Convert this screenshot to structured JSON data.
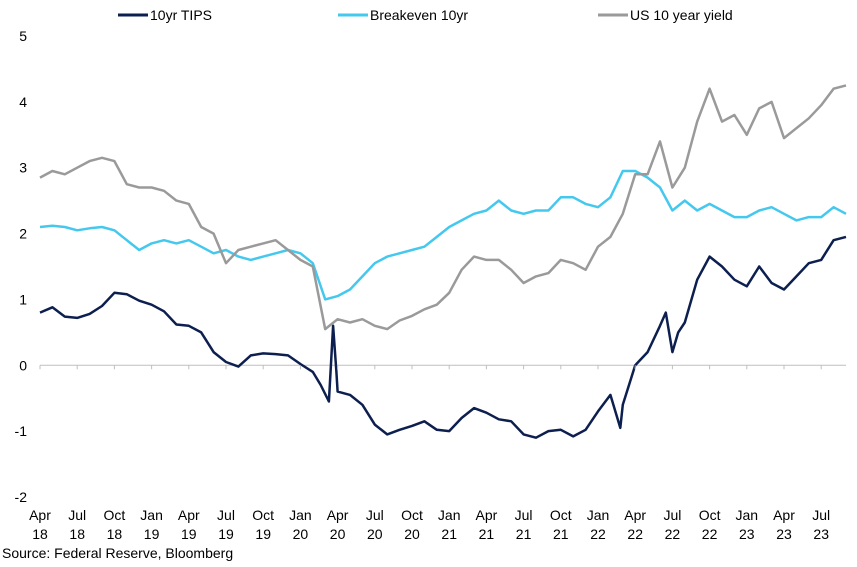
{
  "chart_data": {
    "type": "line",
    "title": "",
    "xlabel": "",
    "ylabel": "",
    "ylim": [
      -2,
      5
    ],
    "yticks": [
      -2,
      -1,
      0,
      1,
      2,
      3,
      4,
      5
    ],
    "xlim": [
      "2018-04",
      "2023-09"
    ],
    "xticks": [
      {
        "date": "2018-04",
        "line1": "Apr",
        "line2": "18"
      },
      {
        "date": "2018-07",
        "line1": "Jul",
        "line2": "18"
      },
      {
        "date": "2018-10",
        "line1": "Oct",
        "line2": "18"
      },
      {
        "date": "2019-01",
        "line1": "Jan",
        "line2": "19"
      },
      {
        "date": "2019-04",
        "line1": "Apr",
        "line2": "19"
      },
      {
        "date": "2019-07",
        "line1": "Jul",
        "line2": "19"
      },
      {
        "date": "2019-10",
        "line1": "Oct",
        "line2": "19"
      },
      {
        "date": "2020-01",
        "line1": "Jan",
        "line2": "20"
      },
      {
        "date": "2020-04",
        "line1": "Apr",
        "line2": "20"
      },
      {
        "date": "2020-07",
        "line1": "Jul",
        "line2": "20"
      },
      {
        "date": "2020-10",
        "line1": "Oct",
        "line2": "20"
      },
      {
        "date": "2021-01",
        "line1": "Jan",
        "line2": "21"
      },
      {
        "date": "2021-04",
        "line1": "Apr",
        "line2": "21"
      },
      {
        "date": "2021-07",
        "line1": "Jul",
        "line2": "21"
      },
      {
        "date": "2021-10",
        "line1": "Oct",
        "line2": "21"
      },
      {
        "date": "2022-01",
        "line1": "Jan",
        "line2": "22"
      },
      {
        "date": "2022-04",
        "line1": "Apr",
        "line2": "22"
      },
      {
        "date": "2022-07",
        "line1": "Jul",
        "line2": "22"
      },
      {
        "date": "2022-10",
        "line1": "Oct",
        "line2": "22"
      },
      {
        "date": "2023-01",
        "line1": "Jan",
        "line2": "23"
      },
      {
        "date": "2023-04",
        "line1": "Apr",
        "line2": "23"
      },
      {
        "date": "2023-07",
        "line1": "Jul",
        "line2": "23"
      }
    ],
    "grid": false,
    "legend_position": "top",
    "series": [
      {
        "name": "10yr TIPS",
        "color": "#0d1f4f",
        "points": [
          [
            "2018-04",
            0.8
          ],
          [
            "2018-05",
            0.88
          ],
          [
            "2018-06",
            0.74
          ],
          [
            "2018-07",
            0.72
          ],
          [
            "2018-08",
            0.78
          ],
          [
            "2018-09",
            0.9
          ],
          [
            "2018-10",
            1.1
          ],
          [
            "2018-11",
            1.08
          ],
          [
            "2018-12",
            0.98
          ],
          [
            "2019-01",
            0.92
          ],
          [
            "2019-02",
            0.82
          ],
          [
            "2019-03",
            0.62
          ],
          [
            "2019-04",
            0.6
          ],
          [
            "2019-05",
            0.5
          ],
          [
            "2019-06",
            0.2
          ],
          [
            "2019-07",
            0.05
          ],
          [
            "2019-08",
            -0.02
          ],
          [
            "2019-09",
            0.15
          ],
          [
            "2019-10",
            0.18
          ],
          [
            "2019-11",
            0.17
          ],
          [
            "2019-12",
            0.15
          ],
          [
            "2020-01",
            0.02
          ],
          [
            "2020-02",
            -0.1
          ],
          [
            "2020-02-20",
            -0.3
          ],
          [
            "2020-03-10",
            -0.55
          ],
          [
            "2020-03-20",
            0.6
          ],
          [
            "2020-03-28",
            -0.1
          ],
          [
            "2020-04",
            -0.4
          ],
          [
            "2020-05",
            -0.45
          ],
          [
            "2020-06",
            -0.6
          ],
          [
            "2020-07",
            -0.9
          ],
          [
            "2020-08",
            -1.05
          ],
          [
            "2020-09",
            -0.98
          ],
          [
            "2020-10",
            -0.92
          ],
          [
            "2020-11",
            -0.85
          ],
          [
            "2020-12",
            -0.98
          ],
          [
            "2021-01",
            -1.0
          ],
          [
            "2021-02",
            -0.8
          ],
          [
            "2021-03",
            -0.65
          ],
          [
            "2021-04",
            -0.72
          ],
          [
            "2021-05",
            -0.82
          ],
          [
            "2021-06",
            -0.85
          ],
          [
            "2021-07",
            -1.05
          ],
          [
            "2021-08",
            -1.1
          ],
          [
            "2021-09",
            -1.0
          ],
          [
            "2021-10",
            -0.98
          ],
          [
            "2021-11",
            -1.08
          ],
          [
            "2021-12",
            -0.98
          ],
          [
            "2022-01",
            -0.7
          ],
          [
            "2022-02",
            -0.45
          ],
          [
            "2022-02-25",
            -0.95
          ],
          [
            "2022-03",
            -0.6
          ],
          [
            "2022-04",
            0.0
          ],
          [
            "2022-05",
            0.2
          ],
          [
            "2022-06",
            0.6
          ],
          [
            "2022-06-15",
            0.8
          ],
          [
            "2022-07",
            0.2
          ],
          [
            "2022-07-15",
            0.5
          ],
          [
            "2022-08",
            0.65
          ],
          [
            "2022-09",
            1.3
          ],
          [
            "2022-10",
            1.65
          ],
          [
            "2022-11",
            1.5
          ],
          [
            "2022-12",
            1.3
          ],
          [
            "2023-01",
            1.2
          ],
          [
            "2023-02",
            1.5
          ],
          [
            "2023-03",
            1.25
          ],
          [
            "2023-04",
            1.15
          ],
          [
            "2023-05",
            1.35
          ],
          [
            "2023-06",
            1.55
          ],
          [
            "2023-07",
            1.6
          ],
          [
            "2023-08",
            1.9
          ],
          [
            "2023-09",
            1.95
          ]
        ]
      },
      {
        "name": "Breakeven 10yr",
        "color": "#45c8ee",
        "points": [
          [
            "2018-04",
            2.1
          ],
          [
            "2018-05",
            2.12
          ],
          [
            "2018-06",
            2.1
          ],
          [
            "2018-07",
            2.05
          ],
          [
            "2018-08",
            2.08
          ],
          [
            "2018-09",
            2.1
          ],
          [
            "2018-10",
            2.05
          ],
          [
            "2018-11",
            1.9
          ],
          [
            "2018-12",
            1.75
          ],
          [
            "2019-01",
            1.85
          ],
          [
            "2019-02",
            1.9
          ],
          [
            "2019-03",
            1.85
          ],
          [
            "2019-04",
            1.9
          ],
          [
            "2019-05",
            1.8
          ],
          [
            "2019-06",
            1.7
          ],
          [
            "2019-07",
            1.75
          ],
          [
            "2019-08",
            1.65
          ],
          [
            "2019-09",
            1.6
          ],
          [
            "2019-10",
            1.65
          ],
          [
            "2019-11",
            1.7
          ],
          [
            "2019-12",
            1.75
          ],
          [
            "2020-01",
            1.7
          ],
          [
            "2020-02",
            1.55
          ],
          [
            "2020-03",
            1.0
          ],
          [
            "2020-04",
            1.05
          ],
          [
            "2020-05",
            1.15
          ],
          [
            "2020-06",
            1.35
          ],
          [
            "2020-07",
            1.55
          ],
          [
            "2020-08",
            1.65
          ],
          [
            "2020-09",
            1.7
          ],
          [
            "2020-10",
            1.75
          ],
          [
            "2020-11",
            1.8
          ],
          [
            "2020-12",
            1.95
          ],
          [
            "2021-01",
            2.1
          ],
          [
            "2021-02",
            2.2
          ],
          [
            "2021-03",
            2.3
          ],
          [
            "2021-04",
            2.35
          ],
          [
            "2021-05",
            2.5
          ],
          [
            "2021-06",
            2.35
          ],
          [
            "2021-07",
            2.3
          ],
          [
            "2021-08",
            2.35
          ],
          [
            "2021-09",
            2.35
          ],
          [
            "2021-10",
            2.55
          ],
          [
            "2021-11",
            2.55
          ],
          [
            "2021-12",
            2.45
          ],
          [
            "2022-01",
            2.4
          ],
          [
            "2022-02",
            2.55
          ],
          [
            "2022-03",
            2.95
          ],
          [
            "2022-04",
            2.95
          ],
          [
            "2022-05",
            2.85
          ],
          [
            "2022-06",
            2.7
          ],
          [
            "2022-07",
            2.35
          ],
          [
            "2022-08",
            2.5
          ],
          [
            "2022-09",
            2.35
          ],
          [
            "2022-10",
            2.45
          ],
          [
            "2022-11",
            2.35
          ],
          [
            "2022-12",
            2.25
          ],
          [
            "2023-01",
            2.25
          ],
          [
            "2023-02",
            2.35
          ],
          [
            "2023-03",
            2.4
          ],
          [
            "2023-04",
            2.3
          ],
          [
            "2023-05",
            2.2
          ],
          [
            "2023-06",
            2.25
          ],
          [
            "2023-07",
            2.25
          ],
          [
            "2023-08",
            2.4
          ],
          [
            "2023-09",
            2.3
          ]
        ]
      },
      {
        "name": "US 10 year yield",
        "color": "#9a9a9a",
        "points": [
          [
            "2018-04",
            2.85
          ],
          [
            "2018-05",
            2.95
          ],
          [
            "2018-06",
            2.9
          ],
          [
            "2018-07",
            3.0
          ],
          [
            "2018-08",
            3.1
          ],
          [
            "2018-09",
            3.15
          ],
          [
            "2018-10",
            3.1
          ],
          [
            "2018-11",
            2.75
          ],
          [
            "2018-12",
            2.7
          ],
          [
            "2019-01",
            2.7
          ],
          [
            "2019-02",
            2.65
          ],
          [
            "2019-03",
            2.5
          ],
          [
            "2019-04",
            2.45
          ],
          [
            "2019-05",
            2.1
          ],
          [
            "2019-06",
            2.0
          ],
          [
            "2019-07",
            1.55
          ],
          [
            "2019-08",
            1.75
          ],
          [
            "2019-09",
            1.8
          ],
          [
            "2019-10",
            1.85
          ],
          [
            "2019-11",
            1.9
          ],
          [
            "2019-12",
            1.75
          ],
          [
            "2020-01",
            1.6
          ],
          [
            "2020-02",
            1.5
          ],
          [
            "2020-03",
            0.55
          ],
          [
            "2020-04",
            0.7
          ],
          [
            "2020-05",
            0.65
          ],
          [
            "2020-06",
            0.7
          ],
          [
            "2020-07",
            0.6
          ],
          [
            "2020-08",
            0.55
          ],
          [
            "2020-09",
            0.68
          ],
          [
            "2020-10",
            0.75
          ],
          [
            "2020-11",
            0.85
          ],
          [
            "2020-12",
            0.92
          ],
          [
            "2021-01",
            1.1
          ],
          [
            "2021-02",
            1.45
          ],
          [
            "2021-03",
            1.65
          ],
          [
            "2021-04",
            1.6
          ],
          [
            "2021-05",
            1.6
          ],
          [
            "2021-06",
            1.45
          ],
          [
            "2021-07",
            1.25
          ],
          [
            "2021-08",
            1.35
          ],
          [
            "2021-09",
            1.4
          ],
          [
            "2021-10",
            1.6
          ],
          [
            "2021-11",
            1.55
          ],
          [
            "2021-12",
            1.45
          ],
          [
            "2022-01",
            1.8
          ],
          [
            "2022-02",
            1.95
          ],
          [
            "2022-03",
            2.3
          ],
          [
            "2022-04",
            2.9
          ],
          [
            "2022-05",
            2.9
          ],
          [
            "2022-06",
            3.4
          ],
          [
            "2022-07",
            2.7
          ],
          [
            "2022-08",
            3.0
          ],
          [
            "2022-09",
            3.7
          ],
          [
            "2022-10",
            4.2
          ],
          [
            "2022-11",
            3.7
          ],
          [
            "2022-12",
            3.8
          ],
          [
            "2023-01",
            3.5
          ],
          [
            "2023-02",
            3.9
          ],
          [
            "2023-03",
            4.0
          ],
          [
            "2023-04",
            3.45
          ],
          [
            "2023-05",
            3.6
          ],
          [
            "2023-06",
            3.75
          ],
          [
            "2023-07",
            3.95
          ],
          [
            "2023-08",
            4.2
          ],
          [
            "2023-09",
            4.25
          ]
        ]
      }
    ]
  },
  "source": "Source: Federal Reserve, Bloomberg"
}
